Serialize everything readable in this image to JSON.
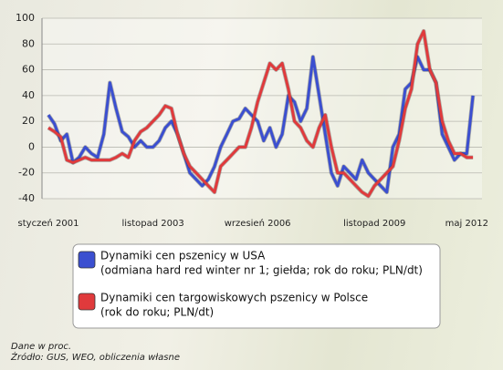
{
  "chart_data": {
    "type": "line",
    "categories": [
      "styczeń 2001",
      null,
      null,
      null,
      null,
      null,
      null,
      null,
      null,
      null,
      null,
      null,
      null,
      null,
      null,
      null,
      null,
      "listopad 2003",
      null,
      null,
      null,
      null,
      null,
      null,
      null,
      null,
      null,
      null,
      null,
      null,
      null,
      null,
      null,
      null,
      "wrzesień 2006",
      null,
      null,
      null,
      null,
      null,
      null,
      null,
      null,
      null,
      null,
      null,
      null,
      null,
      null,
      null,
      null,
      null,
      null,
      "listopad 2009",
      null,
      null,
      null,
      null,
      null,
      null,
      null,
      null,
      null,
      null,
      null,
      null,
      null,
      null,
      "maj 2012",
      null
    ],
    "series": [
      {
        "name": "Dynamiki cen pszenicy w USA",
        "note": "(odmiana hard red winter nr 1; giełda; rok do roku; PLN/dt)",
        "color": "#3b4fd0",
        "values": [
          25,
          18,
          5,
          10,
          -12,
          -8,
          0,
          -5,
          -8,
          10,
          50,
          30,
          12,
          8,
          0,
          5,
          0,
          0,
          5,
          15,
          20,
          10,
          -5,
          -20,
          -25,
          -30,
          -25,
          -15,
          0,
          10,
          20,
          22,
          30,
          25,
          20,
          5,
          15,
          0,
          10,
          40,
          35,
          20,
          30,
          70,
          40,
          10,
          -20,
          -30,
          -15,
          -20,
          -25,
          -10,
          -20,
          -25,
          -30,
          -35,
          0,
          10,
          45,
          50,
          70,
          60,
          60,
          50,
          10,
          0,
          -10,
          -5,
          -5,
          40
        ]
      },
      {
        "name": "Dynamiki cen targowiskowych pszenicy w Polsce",
        "note": "(rok do roku; PLN/dt)",
        "color": "#e03a3c",
        "values": [
          15,
          12,
          8,
          -10,
          -12,
          -10,
          -8,
          -10,
          -10,
          -10,
          -10,
          -8,
          -5,
          -8,
          5,
          12,
          15,
          20,
          25,
          32,
          30,
          10,
          -5,
          -15,
          -20,
          -25,
          -30,
          -35,
          -15,
          -10,
          -5,
          0,
          0,
          15,
          35,
          50,
          65,
          60,
          65,
          45,
          20,
          15,
          5,
          0,
          15,
          25,
          0,
          -20,
          -20,
          -25,
          -30,
          -35,
          -38,
          -30,
          -25,
          -20,
          -15,
          5,
          30,
          45,
          80,
          90,
          60,
          50,
          20,
          5,
          -5,
          -5,
          -8,
          -8
        ]
      }
    ],
    "ylim": [
      -40,
      100
    ],
    "yticks": [
      -40,
      -20,
      0,
      20,
      40,
      60,
      80,
      100
    ],
    "grid": true,
    "footnotes": [
      "Dane w proc.",
      "Źródło: GUS, WEO, obliczenia własne"
    ]
  }
}
